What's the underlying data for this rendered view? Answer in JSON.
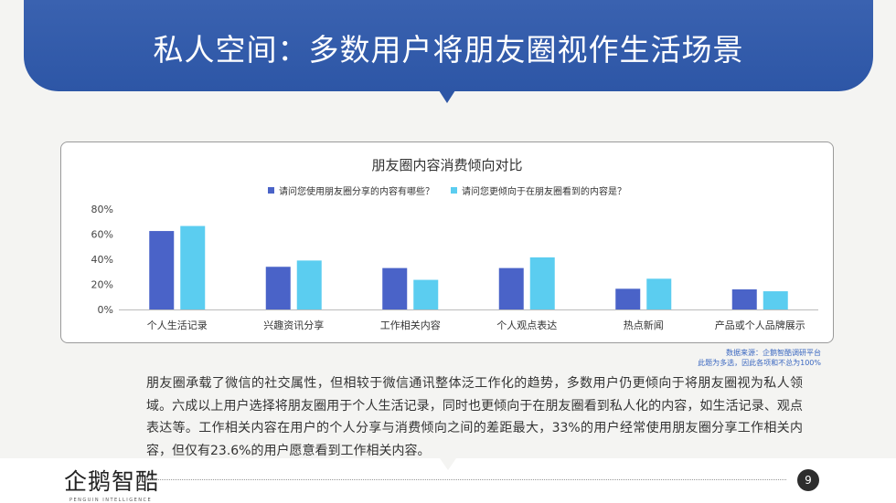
{
  "header": {
    "title": "私人空间：多数用户将朋友圈视作生活场景"
  },
  "chart_data": {
    "type": "bar",
    "title": "朋友圈内容消费倾向对比",
    "categories": [
      "个人生活记录",
      "兴趣资讯分享",
      "工作相关内容",
      "个人观点表达",
      "热点新闻",
      "产品或个人品牌展示"
    ],
    "series": [
      {
        "name": "请问您使用朋友圈分享的内容有哪些？",
        "color": "#4a63c8",
        "values": [
          62.5,
          34,
          33,
          33,
          16.5,
          16
        ]
      },
      {
        "name": "请问您更倾向于在朋友圈看到的内容是？",
        "color": "#5bcdf0",
        "values": [
          66.5,
          39,
          23.6,
          41.5,
          24.5,
          14.5
        ]
      }
    ],
    "ylim": [
      0,
      80
    ],
    "yticks": [
      "0%",
      "20%",
      "40%",
      "60%",
      "80%"
    ],
    "grid": false,
    "legend": "top-center"
  },
  "source": {
    "line1": "数据来源：企鹅智酷调研平台",
    "line2": "此题为多选，因此各项和不总为100%"
  },
  "body": {
    "text": "朋友圈承载了微信的社交属性，但相较于微信通讯整体泛工作化的趋势，多数用户仍更倾向于将朋友圈视为私人领域。六成以上用户选择将朋友圈用于个人生活记录，同时也更倾向于在朋友圈看到私人化的内容，如生活记录、观点表达等。工作相关内容在用户的个人分享与消费倾向之间的差距最大，33%的用户经常使用朋友圈分享工作相关内容，但仅有23.6%的用户愿意看到工作相关内容。"
  },
  "footer": {
    "logo_cn": "企鹅智酷",
    "logo_en": "PENGUIN INTELLIGENCE",
    "page_number": "9"
  }
}
